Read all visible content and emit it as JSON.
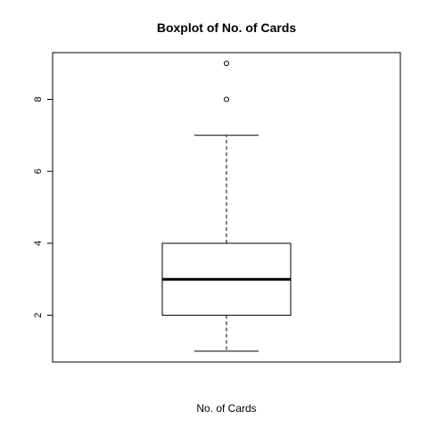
{
  "chart_data": {
    "type": "boxplot",
    "title": "Boxplot of No. of Cards",
    "xlabel": "No. of Cards",
    "ylabel": "",
    "ylim": [
      0.7,
      9.3
    ],
    "yticks": [
      2,
      4,
      6,
      8
    ],
    "grid": false,
    "legend": "none",
    "box": {
      "whisker_low": 1,
      "q1": 2,
      "median": 3,
      "q3": 4,
      "whisker_high": 7,
      "outliers": [
        8,
        9
      ]
    },
    "colors": {
      "line": "#000000",
      "background": "#ffffff"
    }
  }
}
